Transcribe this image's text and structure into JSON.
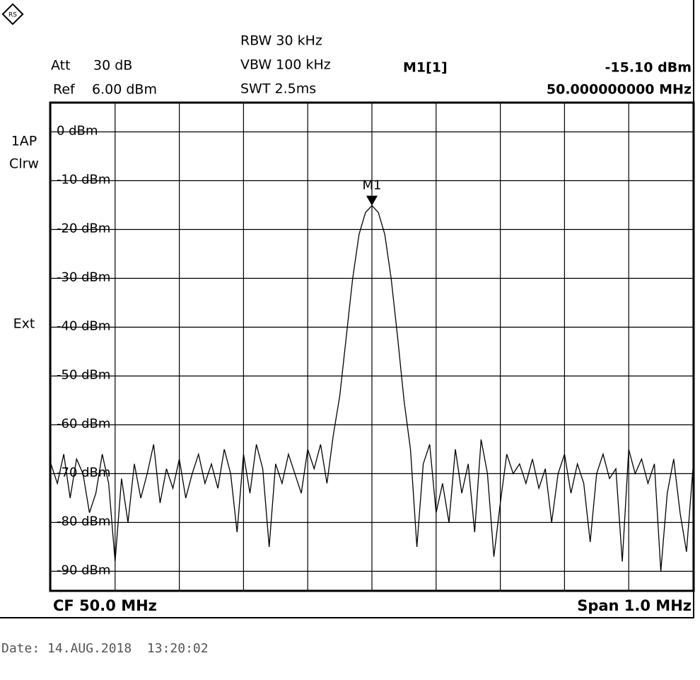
{
  "chart_data": {
    "type": "line",
    "info": {
      "att_label": "Att",
      "att": "30 dB",
      "ref_label": "Ref",
      "ref": "6.00 dBm",
      "rbw": "RBW 30 kHz",
      "vbw": "VBW 100 kHz",
      "swt": "SWT 2.5ms",
      "trace_mode": "1AP",
      "trace_clear": "Clrw",
      "trigger": "Ext",
      "center": "CF 50.0 MHz",
      "span": "Span 1.0 MHz",
      "date": "Date: 14.AUG.2018  13:20:02"
    },
    "marker": {
      "name": "M1",
      "readout": "M1[1]",
      "x": 50.0,
      "x_label": "50.000000000 MHz",
      "y": -15.1,
      "y_label": "-15.10 dBm"
    },
    "xlim": [
      49.5,
      50.5
    ],
    "xticks": [
      49.5,
      49.6,
      49.7,
      49.8,
      49.9,
      50.0,
      50.1,
      50.2,
      50.3,
      50.4,
      50.5
    ],
    "ylim": [
      -94,
      6
    ],
    "yticks": [
      {
        "value": 0,
        "label": "0 dBm"
      },
      {
        "value": -10,
        "label": "-10 dBm"
      },
      {
        "value": -20,
        "label": "-20 dBm"
      },
      {
        "value": -30,
        "label": "-30 dBm"
      },
      {
        "value": -40,
        "label": "-40 dBm"
      },
      {
        "value": -50,
        "label": "-50 dBm"
      },
      {
        "value": -60,
        "label": "-60 dBm"
      },
      {
        "value": -70,
        "label": "-70 dBm"
      },
      {
        "value": -80,
        "label": "-80 dBm"
      },
      {
        "value": -90,
        "label": "-90 dBm"
      }
    ],
    "grid": true,
    "x": [
      49.5,
      49.51,
      49.52,
      49.53,
      49.54,
      49.55,
      49.56,
      49.57,
      49.58,
      49.59,
      49.6,
      49.61,
      49.62,
      49.63,
      49.64,
      49.65,
      49.66,
      49.67,
      49.68,
      49.69,
      49.7,
      49.71,
      49.72,
      49.73,
      49.74,
      49.75,
      49.76,
      49.77,
      49.78,
      49.79,
      49.8,
      49.81,
      49.82,
      49.83,
      49.84,
      49.85,
      49.86,
      49.87,
      49.88,
      49.89,
      49.9,
      49.91,
      49.92,
      49.93,
      49.94,
      49.95,
      49.96,
      49.97,
      49.98,
      49.99,
      50.0,
      50.01,
      50.02,
      50.03,
      50.04,
      50.05,
      50.06,
      50.07,
      50.08,
      50.09,
      50.1,
      50.11,
      50.12,
      50.13,
      50.14,
      50.15,
      50.16,
      50.17,
      50.18,
      50.19,
      50.2,
      50.21,
      50.22,
      50.23,
      50.24,
      50.25,
      50.26,
      50.27,
      50.28,
      50.29,
      50.3,
      50.31,
      50.32,
      50.33,
      50.34,
      50.35,
      50.36,
      50.37,
      50.38,
      50.39,
      50.4,
      50.41,
      50.42,
      50.43,
      50.44,
      50.45,
      50.46,
      50.47,
      50.48,
      50.49,
      50.5
    ],
    "series": [
      {
        "color": "#000000",
        "values": [
          -68,
          -72,
          -66,
          -75,
          -67,
          -70,
          -78,
          -74,
          -66,
          -72,
          -88,
          -71,
          -80,
          -68,
          -75,
          -70,
          -64,
          -76,
          -69,
          -73,
          -67,
          -75,
          -70,
          -66,
          -72,
          -68,
          -73,
          -65,
          -70,
          -82,
          -66,
          -74,
          -64,
          -69,
          -85,
          -68,
          -72,
          -66,
          -70,
          -74,
          -65,
          -69,
          -64,
          -72,
          -62,
          -54,
          -42,
          -30,
          -21,
          -16.5,
          -15.1,
          -16.5,
          -21,
          -30,
          -42,
          -55,
          -65,
          -85,
          -68,
          -64,
          -78,
          -72,
          -80,
          -65,
          -74,
          -68,
          -82,
          -63,
          -70,
          -87,
          -76,
          -66,
          -70,
          -68,
          -72,
          -67,
          -73,
          -69,
          -80,
          -70,
          -66,
          -74,
          -68,
          -72,
          -84,
          -70,
          -66,
          -71,
          -69,
          -88,
          -65,
          -70,
          -67,
          -72,
          -68,
          -90,
          -74,
          -67,
          -78,
          -86,
          -69
        ]
      }
    ]
  }
}
